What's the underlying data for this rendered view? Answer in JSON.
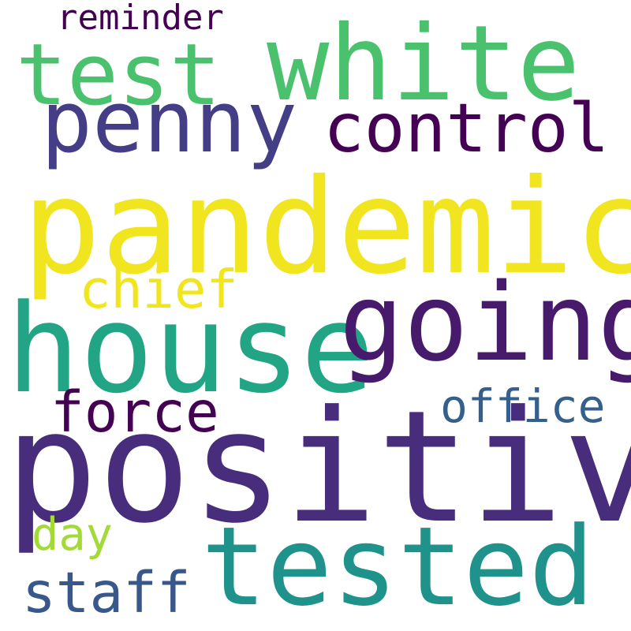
{
  "cloud": {
    "words": {
      "pandemic": {
        "text": "pandemic",
        "color": "#f0e51e"
      },
      "positive": {
        "text": "positive",
        "color": "#472d7b"
      },
      "house": {
        "text": "house",
        "color": "#21a585"
      },
      "going": {
        "text": "going",
        "color": "#481a6c"
      },
      "tested": {
        "text": "tested",
        "color": "#20928c"
      },
      "white": {
        "text": "white",
        "color": "#4ac16d"
      },
      "test": {
        "text": "test",
        "color": "#4ac16d"
      },
      "penny": {
        "text": "penny",
        "color": "#433e85"
      },
      "control": {
        "text": "control",
        "color": "#440154"
      },
      "chief": {
        "text": "chief",
        "color": "#f1e51d"
      },
      "force": {
        "text": "force",
        "color": "#440154"
      },
      "office": {
        "text": "office",
        "color": "#355f8d"
      },
      "staff": {
        "text": "staff",
        "color": "#38588c"
      },
      "reminder": {
        "text": "reminder",
        "color": "#440154"
      },
      "day": {
        "text": "day",
        "color": "#a2da37"
      }
    }
  }
}
